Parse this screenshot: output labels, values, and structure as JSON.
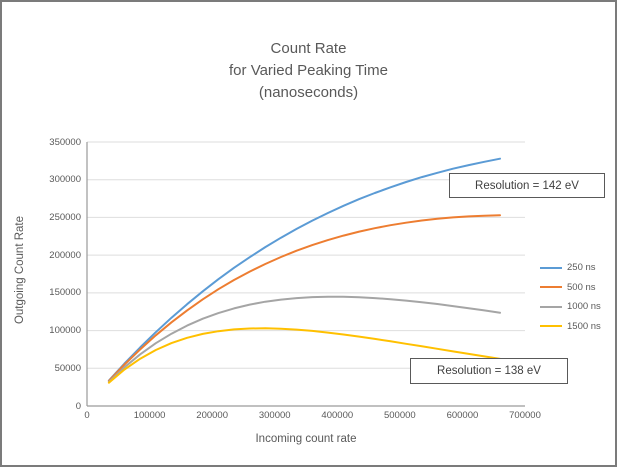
{
  "title": {
    "lines": [
      "Count Rate",
      "for Varied Peaking Time",
      "(nanoseconds)"
    ]
  },
  "chart_data": {
    "type": "line",
    "title": "Count Rate for Varied Peaking Time (nanoseconds)",
    "xlabel": "Incoming count rate",
    "ylabel": "Outgoing Count Rate",
    "xlim": [
      0,
      700000
    ],
    "ylim": [
      0,
      350000
    ],
    "x_ticks": [
      0,
      100000,
      200000,
      300000,
      400000,
      500000,
      600000,
      700000
    ],
    "y_ticks": [
      0,
      50000,
      100000,
      150000,
      200000,
      250000,
      300000,
      350000
    ],
    "grid": "horizontal-only",
    "legend_position": "right",
    "gridline_color": "#dedede",
    "axis_color": "#9a9a9a",
    "series": [
      {
        "name": "250 ns",
        "color": "#5B9BD5",
        "points": [
          [
            35000,
            33700
          ],
          [
            60000,
            56300
          ],
          [
            85000,
            77700
          ],
          [
            110000,
            97900
          ],
          [
            135000,
            117000
          ],
          [
            160000,
            135000
          ],
          [
            185000,
            152000
          ],
          [
            210000,
            168100
          ],
          [
            235000,
            183200
          ],
          [
            260000,
            197300
          ],
          [
            285000,
            210700
          ],
          [
            310000,
            223100
          ],
          [
            335000,
            234800
          ],
          [
            360000,
            245800
          ],
          [
            385000,
            255900
          ],
          [
            410000,
            265400
          ],
          [
            435000,
            274300
          ],
          [
            460000,
            282400
          ],
          [
            485000,
            290000
          ],
          [
            510000,
            297000
          ],
          [
            535000,
            303400
          ],
          [
            560000,
            309200
          ],
          [
            585000,
            314600
          ],
          [
            610000,
            319400
          ],
          [
            635000,
            323800
          ],
          [
            660000,
            327800
          ]
        ]
      },
      {
        "name": "500 ns",
        "color": "#ED7D31",
        "points": [
          [
            35000,
            33300
          ],
          [
            60000,
            55000
          ],
          [
            85000,
            75100
          ],
          [
            110000,
            93700
          ],
          [
            135000,
            110900
          ],
          [
            160000,
            126800
          ],
          [
            185000,
            141400
          ],
          [
            210000,
            154800
          ],
          [
            235000,
            167000
          ],
          [
            260000,
            178200
          ],
          [
            285000,
            188300
          ],
          [
            310000,
            197600
          ],
          [
            335000,
            205900
          ],
          [
            360000,
            213300
          ],
          [
            385000,
            220000
          ],
          [
            410000,
            225900
          ],
          [
            435000,
            231200
          ],
          [
            460000,
            235700
          ],
          [
            485000,
            239700
          ],
          [
            510000,
            243000
          ],
          [
            535000,
            245900
          ],
          [
            560000,
            248200
          ],
          [
            585000,
            250000
          ],
          [
            610000,
            251400
          ],
          [
            635000,
            252300
          ],
          [
            660000,
            252900
          ]
        ]
      },
      {
        "name": "1000 ns",
        "color": "#A5A5A5",
        "points": [
          [
            35000,
            32000
          ],
          [
            60000,
            51500
          ],
          [
            85000,
            68500
          ],
          [
            110000,
            83200
          ],
          [
            135000,
            95800
          ],
          [
            160000,
            106600
          ],
          [
            185000,
            115700
          ],
          [
            210000,
            123200
          ],
          [
            235000,
            129400
          ],
          [
            260000,
            134400
          ],
          [
            285000,
            138300
          ],
          [
            310000,
            141100
          ],
          [
            335000,
            143100
          ],
          [
            360000,
            144400
          ],
          [
            385000,
            144900
          ],
          [
            410000,
            144800
          ],
          [
            435000,
            144200
          ],
          [
            460000,
            143100
          ],
          [
            485000,
            141600
          ],
          [
            510000,
            139800
          ],
          [
            535000,
            137600
          ],
          [
            560000,
            135200
          ],
          [
            585000,
            132500
          ],
          [
            610000,
            129700
          ],
          [
            635000,
            126700
          ],
          [
            660000,
            123600
          ]
        ]
      },
      {
        "name": "1500 ns",
        "color": "#FFC000",
        "points": [
          [
            35000,
            30900
          ],
          [
            60000,
            48400
          ],
          [
            85000,
            62700
          ],
          [
            110000,
            74300
          ],
          [
            135000,
            83400
          ],
          [
            160000,
            90400
          ],
          [
            185000,
            95600
          ],
          [
            210000,
            99200
          ],
          [
            235000,
            101500
          ],
          [
            260000,
            102700
          ],
          [
            285000,
            103000
          ],
          [
            310000,
            102500
          ],
          [
            335000,
            101300
          ],
          [
            360000,
            99500
          ],
          [
            385000,
            97300
          ],
          [
            410000,
            94800
          ],
          [
            435000,
            92000
          ],
          [
            460000,
            89000
          ],
          [
            485000,
            85800
          ],
          [
            510000,
            82500
          ],
          [
            535000,
            79200
          ],
          [
            560000,
            75800
          ],
          [
            585000,
            72400
          ],
          [
            610000,
            69100
          ],
          [
            635000,
            65700
          ],
          [
            660000,
            62500
          ]
        ]
      }
    ],
    "annotations": [
      {
        "text": "Resolution = 142 eV",
        "series": "250 ns"
      },
      {
        "text": "Resolution = 138 eV",
        "series": "1500 ns"
      }
    ]
  }
}
